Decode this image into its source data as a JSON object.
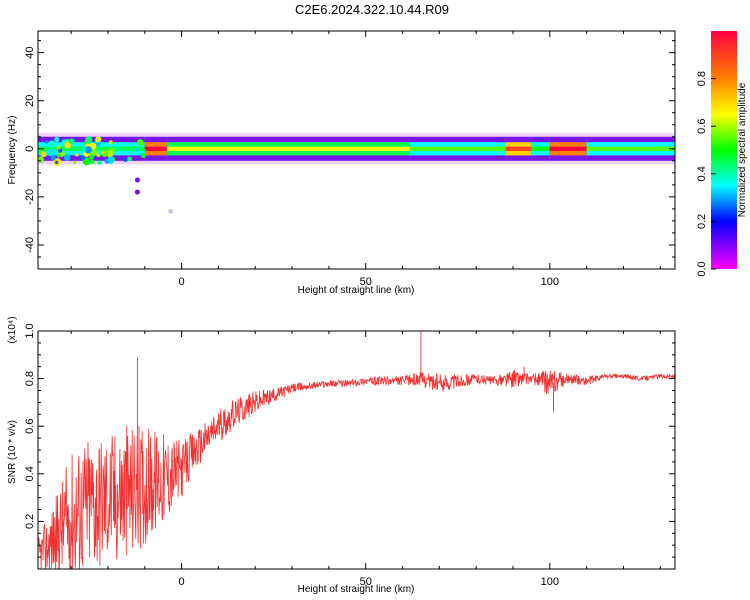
{
  "page": {
    "title": "C2E6.2024.322.10.44.R09"
  },
  "chart_data": [
    {
      "type": "heatmap",
      "name": "spectrogram",
      "xlabel": "Height of straight line (km)",
      "ylabel": "Frequency (Hz)",
      "xlim": [
        -39,
        134
      ],
      "ylim": [
        -50,
        49
      ],
      "x_ticks": [
        0,
        50,
        100
      ],
      "y_ticks": [
        -40,
        -20,
        0,
        20,
        40
      ],
      "colorbar": {
        "label": "Normalized spectral amplitude",
        "range": [
          0.0,
          1.0
        ],
        "ticks": [
          0.0,
          0.2,
          0.4,
          0.6,
          0.8
        ],
        "colormap": "rainbow (purple-blue-cyan-green-yellow-red)"
      },
      "band": {
        "center_hz": 0,
        "half_width_hz": 5,
        "segments": [
          {
            "x": [
              -39,
              -10
            ],
            "amplitude": 0.45
          },
          {
            "x": [
              -10,
              -4
            ],
            "amplitude": 1.0
          },
          {
            "x": [
              -4,
              62
            ],
            "amplitude": 0.65
          },
          {
            "x": [
              62,
              88
            ],
            "amplitude": 0.55
          },
          {
            "x": [
              88,
              95
            ],
            "amplitude": 0.9
          },
          {
            "x": [
              95,
              100
            ],
            "amplitude": 0.5
          },
          {
            "x": [
              100,
              110
            ],
            "amplitude": 1.0
          },
          {
            "x": [
              110,
              134
            ],
            "amplitude": 0.55
          }
        ],
        "scatter_points": [
          {
            "x": -12,
            "y": -13
          },
          {
            "x": -12,
            "y": -18
          },
          {
            "x": -3,
            "y": -26
          }
        ]
      },
      "grid": false
    },
    {
      "type": "line",
      "name": "snr",
      "xlabel": "Height of straight line (km)",
      "ylabel": "SNR (10 * v/v)",
      "y_multiplier": "(x10⁴)",
      "xlim": [
        -39,
        134
      ],
      "ylim": [
        0,
        1.0
      ],
      "x_ticks": [
        0,
        50,
        100
      ],
      "y_ticks": [
        0.2,
        0.4,
        0.6,
        0.8,
        1.0
      ],
      "line_color": "#ef3333",
      "series": [
        {
          "x": [
            -39,
            -35,
            -30,
            -25,
            -20,
            -15,
            -10,
            -5,
            0,
            5,
            10,
            15,
            20,
            25,
            30,
            35,
            40,
            45,
            50,
            55,
            60,
            65,
            70,
            75,
            80,
            85,
            90,
            95,
            100,
            105,
            110,
            115,
            120,
            125,
            130,
            134
          ],
          "values": [
            0.05,
            0.12,
            0.22,
            0.28,
            0.3,
            0.32,
            0.35,
            0.38,
            0.42,
            0.52,
            0.6,
            0.66,
            0.7,
            0.73,
            0.76,
            0.77,
            0.78,
            0.78,
            0.79,
            0.79,
            0.79,
            0.8,
            0.78,
            0.79,
            0.8,
            0.79,
            0.8,
            0.8,
            0.78,
            0.8,
            0.79,
            0.81,
            0.81,
            0.8,
            0.81,
            0.81
          ],
          "amplitude": [
            0.08,
            0.15,
            0.28,
            0.3,
            0.28,
            0.3,
            0.25,
            0.2,
            0.12,
            0.08,
            0.07,
            0.06,
            0.05,
            0.03,
            0.02,
            0.015,
            0.015,
            0.015,
            0.015,
            0.02,
            0.02,
            0.03,
            0.04,
            0.03,
            0.02,
            0.02,
            0.04,
            0.02,
            0.06,
            0.02,
            0.02,
            0.01,
            0.01,
            0.01,
            0.01,
            0.01
          ]
        }
      ],
      "spikes": [
        {
          "x": -12,
          "y": 0.89
        },
        {
          "x": 65,
          "y": 1.0
        },
        {
          "x": 93,
          "y": 0.85
        },
        {
          "x": 101,
          "y": 0.66
        }
      ],
      "grid": false
    }
  ]
}
